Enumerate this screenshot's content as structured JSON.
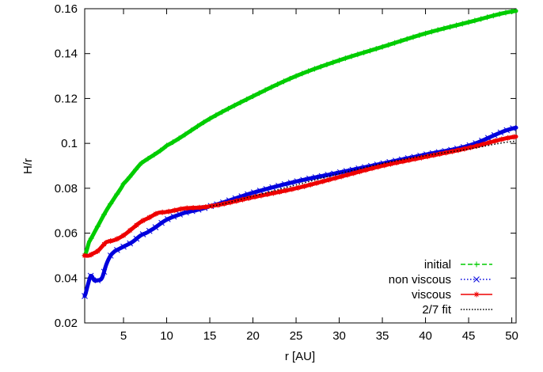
{
  "chart_data": {
    "type": "line",
    "xlabel": "r [AU]",
    "ylabel": "H/r",
    "xlim": [
      0.5,
      50.5
    ],
    "ylim": [
      0.02,
      0.16
    ],
    "xticks": [
      5,
      10,
      15,
      20,
      25,
      30,
      35,
      40,
      45,
      50
    ],
    "xtick_labels": [
      "5",
      "10",
      "15",
      "20",
      "25",
      "30",
      "35",
      "40",
      "45",
      "50"
    ],
    "yticks": [
      0.02,
      0.04,
      0.06,
      0.08,
      0.1,
      0.12,
      0.14,
      0.16
    ],
    "ytick_labels": [
      "0.02",
      "0.04",
      "0.06",
      "0.08",
      "0.1",
      "0.12",
      "0.14",
      "0.16"
    ],
    "grid": false,
    "legend_position": "bottom-right",
    "series": [
      {
        "name": "initial",
        "color": "#00cc00",
        "line_style": "dashed",
        "marker": "plus",
        "x": [
          0.5,
          1,
          2,
          3,
          4,
          5,
          7,
          10,
          15,
          20,
          25,
          30,
          35,
          40,
          45,
          50.5
        ],
        "values": [
          0.05,
          0.056,
          0.063,
          0.07,
          0.076,
          0.082,
          0.091,
          0.099,
          0.111,
          0.121,
          0.13,
          0.137,
          0.143,
          0.149,
          0.154,
          0.159
        ]
      },
      {
        "name": "non viscous",
        "color": "#0000dd",
        "line_style": "dotted",
        "marker": "x",
        "x": [
          0.5,
          0.8,
          1.2,
          1.6,
          2.0,
          2.5,
          3.0,
          3.5,
          4.0,
          5.0,
          6.0,
          7.0,
          8.0,
          10.0,
          12.0,
          15.0,
          20.0,
          25.0,
          30.0,
          35.0,
          40.0,
          45.0,
          50.5
        ],
        "values": [
          0.032,
          0.036,
          0.041,
          0.039,
          0.039,
          0.04,
          0.046,
          0.05,
          0.052,
          0.054,
          0.056,
          0.059,
          0.061,
          0.066,
          0.069,
          0.072,
          0.078,
          0.083,
          0.087,
          0.091,
          0.095,
          0.099,
          0.107
        ]
      },
      {
        "name": "viscous",
        "color": "#ee0000",
        "line_style": "solid",
        "marker": "star",
        "x": [
          0.5,
          1.0,
          1.5,
          2.0,
          2.5,
          3.0,
          4.0,
          5.0,
          6.0,
          7.0,
          8.0,
          9.0,
          10.0,
          12.0,
          15.0,
          20.0,
          25.0,
          30.0,
          35.0,
          40.0,
          45.0,
          50.5
        ],
        "values": [
          0.05,
          0.05,
          0.051,
          0.052,
          0.054,
          0.056,
          0.057,
          0.059,
          0.062,
          0.065,
          0.067,
          0.069,
          0.0695,
          0.071,
          0.072,
          0.076,
          0.08,
          0.085,
          0.09,
          0.094,
          0.098,
          0.103
        ]
      },
      {
        "name": "2/7 fit",
        "color": "#000000",
        "line_style": "dotted",
        "marker": "none",
        "x": [
          15,
          20,
          25,
          30,
          35,
          40,
          45,
          50.5
        ],
        "values": [
          0.072,
          0.0765,
          0.0815,
          0.0865,
          0.091,
          0.0945,
          0.0975,
          0.101
        ]
      }
    ]
  }
}
